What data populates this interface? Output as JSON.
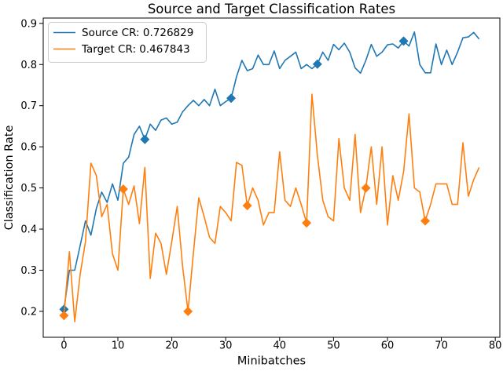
{
  "figure": {
    "title": "Source and Target Classification Rates",
    "xlabel": "Minibatches",
    "ylabel": "Classification Rate"
  },
  "chart_data": {
    "type": "line",
    "title": "Source and Target Classification Rates",
    "xlabel": "Minibatches",
    "ylabel": "Classification Rate",
    "xlim": [
      -3.85,
      80.85
    ],
    "ylim": [
      0.137,
      0.913
    ],
    "grid": false,
    "legend_position": "upper left",
    "xticklabels": [
      "0",
      "10",
      "20",
      "30",
      "40",
      "50",
      "60",
      "70",
      "80"
    ],
    "yticklabels": [
      "0.2",
      "0.3",
      "0.4",
      "0.5",
      "0.6",
      "0.7",
      "0.8",
      "0.9"
    ],
    "x": [
      0,
      1,
      2,
      3,
      4,
      5,
      6,
      7,
      8,
      9,
      10,
      11,
      12,
      13,
      14,
      15,
      16,
      17,
      18,
      19,
      20,
      21,
      22,
      23,
      24,
      25,
      26,
      27,
      28,
      29,
      30,
      31,
      32,
      33,
      34,
      35,
      36,
      37,
      38,
      39,
      40,
      41,
      42,
      43,
      44,
      45,
      46,
      47,
      48,
      49,
      50,
      51,
      52,
      53,
      54,
      55,
      56,
      57,
      58,
      59,
      60,
      61,
      62,
      63,
      64,
      65,
      66,
      67,
      68,
      69,
      70,
      71,
      72,
      73,
      74,
      75,
      76,
      77
    ],
    "series": [
      {
        "name": "Source CR: 0.726829",
        "color": "#1f77b4",
        "marker": "diamond",
        "marker_x": [
          0,
          15,
          31,
          47,
          63
        ],
        "values": [
          0.205,
          0.3,
          0.3,
          0.36,
          0.42,
          0.385,
          0.45,
          0.49,
          0.465,
          0.51,
          0.47,
          0.56,
          0.575,
          0.63,
          0.65,
          0.618,
          0.655,
          0.64,
          0.665,
          0.67,
          0.655,
          0.66,
          0.685,
          0.7,
          0.713,
          0.7,
          0.715,
          0.7,
          0.74,
          0.7,
          0.71,
          0.718,
          0.77,
          0.81,
          0.785,
          0.79,
          0.823,
          0.8,
          0.8,
          0.833,
          0.79,
          0.81,
          0.82,
          0.83,
          0.79,
          0.8,
          0.79,
          0.801,
          0.83,
          0.81,
          0.849,
          0.836,
          0.852,
          0.83,
          0.792,
          0.779,
          0.81,
          0.849,
          0.82,
          0.83,
          0.848,
          0.85,
          0.84,
          0.857,
          0.845,
          0.879,
          0.8,
          0.78,
          0.78,
          0.85,
          0.8,
          0.835,
          0.8,
          0.83,
          0.865,
          0.867,
          0.878,
          0.862
        ]
      },
      {
        "name": "Target CR: 0.467843",
        "color": "#ff7f0e",
        "marker": "diamond",
        "marker_x": [
          0,
          11,
          23,
          34,
          45,
          56,
          67
        ],
        "values": [
          0.19,
          0.345,
          0.175,
          0.29,
          0.37,
          0.56,
          0.53,
          0.43,
          0.46,
          0.34,
          0.3,
          0.497,
          0.46,
          0.505,
          0.413,
          0.55,
          0.28,
          0.39,
          0.365,
          0.29,
          0.37,
          0.455,
          0.31,
          0.2,
          0.34,
          0.476,
          0.43,
          0.38,
          0.365,
          0.455,
          0.44,
          0.42,
          0.562,
          0.555,
          0.457,
          0.5,
          0.47,
          0.41,
          0.44,
          0.44,
          0.588,
          0.47,
          0.455,
          0.5,
          0.46,
          0.415,
          0.728,
          0.58,
          0.47,
          0.43,
          0.42,
          0.62,
          0.5,
          0.47,
          0.63,
          0.44,
          0.5,
          0.6,
          0.46,
          0.6,
          0.41,
          0.53,
          0.47,
          0.54,
          0.68,
          0.5,
          0.49,
          0.42,
          0.46,
          0.51,
          0.51,
          0.51,
          0.46,
          0.46,
          0.61,
          0.48,
          0.52,
          0.55
        ]
      }
    ]
  }
}
